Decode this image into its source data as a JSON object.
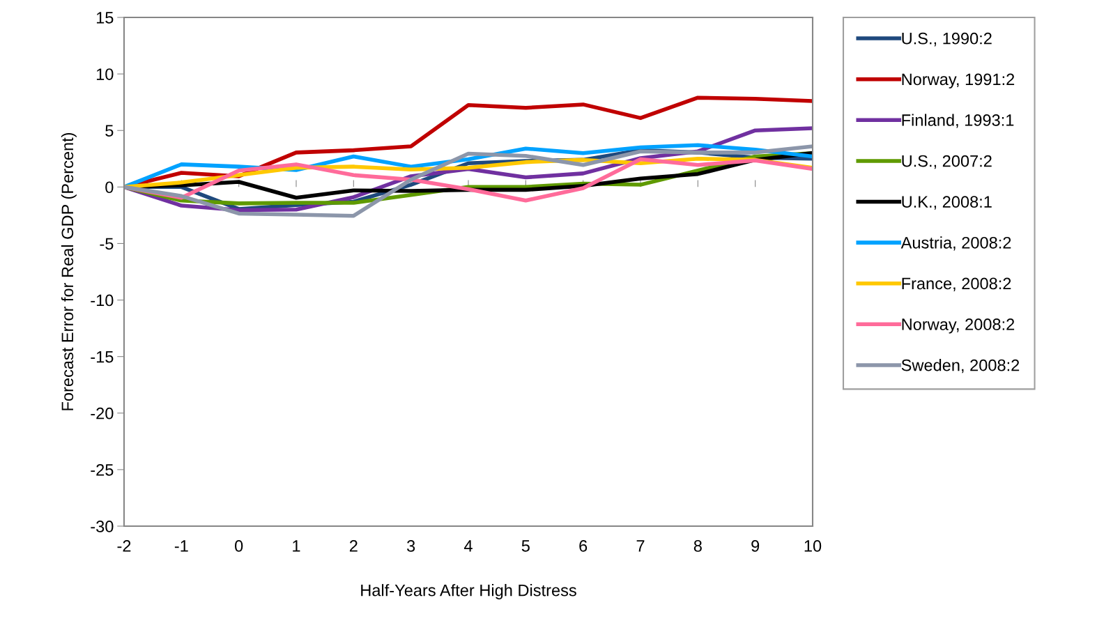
{
  "chart_data": {
    "type": "line",
    "xlabel": "Half-Years After High Distress",
    "ylabel": "Forecast Error for Real GDP (Percent)",
    "x": [
      -2,
      -1,
      0,
      1,
      2,
      3,
      4,
      5,
      6,
      7,
      8,
      9,
      10
    ],
    "xlim": [
      -2,
      10
    ],
    "xticks": [
      -2,
      -1,
      0,
      1,
      2,
      3,
      4,
      5,
      6,
      7,
      8,
      9,
      10
    ],
    "ylim": [
      -30,
      15
    ],
    "yticks": [
      -30,
      -25,
      -20,
      -15,
      -10,
      -5,
      0,
      5,
      10,
      15
    ],
    "grid": false,
    "legend": "right",
    "marker": "none",
    "line_style": "solid",
    "series": [
      {
        "name": "U.S., 1990:2",
        "color": "#1f497d",
        "values": [
          0,
          0,
          -1.95,
          -1.6,
          -1.3,
          0.2,
          2.1,
          2.3,
          2.4,
          3.25,
          3.05,
          2.6,
          2.5
        ]
      },
      {
        "name": "Norway, 1991:2",
        "color": "#c00000",
        "values": [
          0,
          1.25,
          0.95,
          3.05,
          3.25,
          3.6,
          7.25,
          7.0,
          7.3,
          6.1,
          7.9,
          7.8,
          7.6
        ]
      },
      {
        "name": "Finland, 1993:1",
        "color": "#7030a0",
        "values": [
          0,
          -1.65,
          -2.05,
          -2.0,
          -0.9,
          0.95,
          1.6,
          0.85,
          1.2,
          2.55,
          3.15,
          5.0,
          5.2
        ]
      },
      {
        "name": "U.S., 2007:2",
        "color": "#5f9a00",
        "values": [
          0,
          -1.2,
          -1.45,
          -1.4,
          -1.4,
          -0.7,
          0,
          0,
          0.3,
          0.2,
          1.45,
          2.7,
          3.0
        ]
      },
      {
        "name": "U.K., 2008:1",
        "color": "#000000",
        "values": [
          0,
          0.15,
          0.45,
          -0.95,
          -0.3,
          -0.35,
          -0.25,
          -0.25,
          0.1,
          0.75,
          1.15,
          2.4,
          3.0
        ]
      },
      {
        "name": "Austria, 2008:2",
        "color": "#00a2ff",
        "values": [
          0,
          2.0,
          1.8,
          1.5,
          2.7,
          1.8,
          2.45,
          3.4,
          3.0,
          3.5,
          3.7,
          3.3,
          2.7
        ]
      },
      {
        "name": "France, 2008:2",
        "color": "#ffc800",
        "values": [
          0,
          0.4,
          1.05,
          1.7,
          1.8,
          1.55,
          1.7,
          2.2,
          2.4,
          2.1,
          2.5,
          2.4,
          1.7
        ]
      },
      {
        "name": "Norway, 2008:2",
        "color": "#ff6b9a",
        "values": [
          0,
          -0.95,
          1.45,
          2.0,
          1.05,
          0.65,
          -0.2,
          -1.2,
          -0.1,
          2.45,
          1.95,
          2.35,
          1.6
        ]
      },
      {
        "name": "Sweden, 2008:2",
        "color": "#8c96aa",
        "values": [
          0,
          -0.8,
          -2.35,
          -2.45,
          -2.55,
          0.65,
          2.95,
          2.75,
          1.95,
          3.15,
          3.05,
          3.05,
          3.6
        ]
      }
    ]
  }
}
